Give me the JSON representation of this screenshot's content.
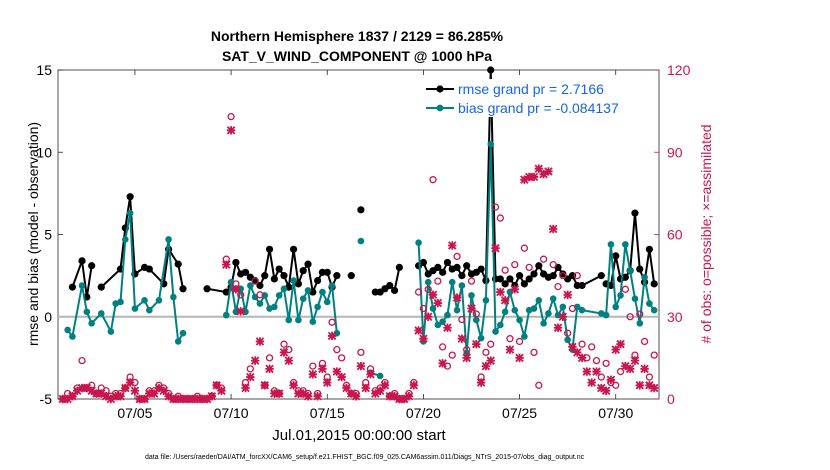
{
  "chart_data": {
    "type": "line",
    "title_line1": "Northern Hemisphere 1837 / 2129 = 86.285%",
    "title_line2": "SAT_V_WIND_COMPONENT @ 1000 hPa",
    "xlabel": "Jul.01,2015 00:00:00 start",
    "ylabel": "rmse and bias (model - observation)",
    "y2label": "# of obs: o=possible; ×=assimilated",
    "footnote": "data file: /Users/raeder/DAI/ATM_forcXX/CAM6_setup/f.e21.FHIST_BGC.f09_025.CAM6assim.011/Diags_NTrS_2015-07/obs_diag_output.nc",
    "xlim": [
      1.0,
      32.25
    ],
    "ylim": [
      -5,
      15
    ],
    "y2lim": [
      0,
      120
    ],
    "x_ticks": [
      {
        "value": 5,
        "label": "07/05"
      },
      {
        "value": 10,
        "label": "07/10"
      },
      {
        "value": 15,
        "label": "07/15"
      },
      {
        "value": 20,
        "label": "07/20"
      },
      {
        "value": 25,
        "label": "07/25"
      },
      {
        "value": 30,
        "label": "07/30"
      }
    ],
    "y_ticks": [
      {
        "value": -5,
        "label": "-5"
      },
      {
        "value": 0,
        "label": "0"
      },
      {
        "value": 5,
        "label": "5"
      },
      {
        "value": 10,
        "label": "10"
      },
      {
        "value": 15,
        "label": "15"
      }
    ],
    "y2_ticks": [
      {
        "value": 0,
        "label": "0"
      },
      {
        "value": 30,
        "label": "30"
      },
      {
        "value": 60,
        "label": "60"
      },
      {
        "value": 90,
        "label": "90"
      },
      {
        "value": 120,
        "label": "120"
      }
    ],
    "legend": [
      {
        "label": "rmse grand pr = 2.7166",
        "color": "#000000",
        "marker": "hexagram"
      },
      {
        "label": "bias grand pr = -0.084137",
        "color": "#008080",
        "marker": "dot"
      }
    ],
    "series": [
      {
        "name": "rmse",
        "color": "#000000",
        "x": [
          1.75,
          2.25,
          2.5,
          2.75,
          3.25,
          4.25,
          4.5,
          4.75,
          5.0,
          5.5,
          5.75,
          6.5,
          6.75,
          7.25,
          7.5,
          8.75,
          9.75,
          10.0,
          10.25,
          10.5,
          10.75,
          11.0,
          11.25,
          11.5,
          11.75,
          12.0,
          12.25,
          12.5,
          12.75,
          13.0,
          13.25,
          13.5,
          13.75,
          14.0,
          14.25,
          14.5,
          14.75,
          15.0,
          15.25,
          15.5,
          16.25,
          16.75,
          17.5,
          17.75,
          18.0,
          18.25,
          18.5,
          18.75,
          19.75,
          20.0,
          20.25,
          20.5,
          20.75,
          21.0,
          21.25,
          21.5,
          21.75,
          22.0,
          22.25,
          22.5,
          22.75,
          23.0,
          23.25,
          23.5,
          23.75,
          24.0,
          24.25,
          24.5,
          24.75,
          25.0,
          25.25,
          25.5,
          25.75,
          26.0,
          26.25,
          26.5,
          26.75,
          27.0,
          27.25,
          27.5,
          27.75,
          28.0,
          28.25,
          29.25,
          29.5,
          29.75,
          30.0,
          30.25,
          30.5,
          30.75,
          31.0,
          31.25,
          31.5,
          31.75,
          32.0
        ],
        "y": [
          1.8,
          3.4,
          1.2,
          3.1,
          1.8,
          2.9,
          5.4,
          7.3,
          2.6,
          3.0,
          2.9,
          2.0,
          4.1,
          3.2,
          1.7,
          1.7,
          1.5,
          1.8,
          3.3,
          2.6,
          2.7,
          2.4,
          2.2,
          1.9,
          2.5,
          4.1,
          2.3,
          2.9,
          2.5,
          1.8,
          4.1,
          2.0,
          2.8,
          3.2,
          1.5,
          2.2,
          2.7,
          2.7,
          1.8,
          2.5,
          2.5,
          6.5,
          1.5,
          1.5,
          1.7,
          1.9,
          1.6,
          3.0,
          3.1,
          3.3,
          2.6,
          2.8,
          3.0,
          2.7,
          3.3,
          2.9,
          3.0,
          2.5,
          3.1,
          2.6,
          2.7,
          2.9,
          2.2,
          15.0,
          2.3,
          2.3,
          2.0,
          2.3,
          1.9,
          2.5,
          2.0,
          2.3,
          2.6,
          3.1,
          2.6,
          2.4,
          2.5,
          3.0,
          2.6,
          2.3,
          2.5,
          1.9,
          1.9,
          2.5,
          2.0,
          1.9,
          3.7,
          2.3,
          2.4,
          2.8,
          6.3,
          2.9,
          2.1,
          4.1,
          2.0
        ],
        "segments": [
          [
            0,
            3
          ],
          [
            4,
            14
          ],
          [
            15,
            21
          ],
          [
            22,
            39
          ],
          [
            40,
            40
          ],
          [
            41,
            41
          ],
          [
            42,
            47
          ],
          [
            48,
            83
          ],
          [
            84,
            94
          ]
        ]
      },
      {
        "name": "bias",
        "color": "#008080",
        "x": [
          1.5,
          1.75,
          2.25,
          2.5,
          2.75,
          3.25,
          3.75,
          4.0,
          4.25,
          4.5,
          4.75,
          5.0,
          5.5,
          5.75,
          6.25,
          6.75,
          7.0,
          7.25,
          7.5,
          9.75,
          10.0,
          10.25,
          10.5,
          10.75,
          11.0,
          11.25,
          11.5,
          11.75,
          12.0,
          12.25,
          12.5,
          12.75,
          13.0,
          13.25,
          13.5,
          13.75,
          14.0,
          14.25,
          14.5,
          14.75,
          15.0,
          15.25,
          15.5,
          16.75,
          17.25,
          17.75,
          19.75,
          20.0,
          20.25,
          20.5,
          20.75,
          21.0,
          21.25,
          21.5,
          21.75,
          22.0,
          22.25,
          22.5,
          22.75,
          23.0,
          23.25,
          23.5,
          23.75,
          24.0,
          24.25,
          24.5,
          24.75,
          25.0,
          25.25,
          25.5,
          25.75,
          26.0,
          26.25,
          26.5,
          26.75,
          27.0,
          27.25,
          27.5,
          27.75,
          28.0,
          28.25,
          29.25,
          29.5,
          29.75,
          30.0,
          30.25,
          30.5,
          30.75,
          31.0,
          31.25,
          31.5,
          31.75,
          32.0
        ],
        "y": [
          -0.8,
          -1.2,
          1.9,
          0.3,
          -0.4,
          0.2,
          -0.9,
          0.8,
          0.9,
          4.7,
          6.3,
          0.5,
          1.0,
          0.4,
          1.0,
          4.7,
          1.2,
          -1.5,
          -1.0,
          0.1,
          2.1,
          0.3,
          1.7,
          0.3,
          1.9,
          1.2,
          0.8,
          1.3,
          0.5,
          0.6,
          1.3,
          1.7,
          -0.2,
          2.2,
          -0.2,
          1.1,
          1.6,
          -0.3,
          0.6,
          1.5,
          0.9,
          1.9,
          -1.0,
          4.6,
          -3.4,
          -3.6,
          4.5,
          -1.5,
          2.1,
          0.5,
          -0.5,
          -0.3,
          0.1,
          2.1,
          0.4,
          1.9,
          -2.2,
          1.3,
          -0.2,
          -1.3,
          1.0,
          10.5,
          -0.9,
          -0.5,
          0.3,
          1.5,
          0.4,
          -0.2,
          -1.2,
          0.4,
          0.5,
          1.0,
          -0.4,
          0.2,
          1.1,
          0.1,
          0.6,
          -1.4,
          -2.0,
          0.6,
          0.4,
          0.2,
          0.1,
          4.4,
          0.6,
          1.3,
          4.4,
          2.8,
          1.1,
          -0.4,
          2.4,
          0.8,
          0.4
        ],
        "segments": [
          [
            0,
            18
          ],
          [
            19,
            42
          ],
          [
            43,
            43
          ],
          [
            44,
            45
          ],
          [
            46,
            92
          ]
        ]
      }
    ],
    "obs_possible": {
      "color": "#c8174e",
      "x": [
        1.25,
        1.5,
        1.75,
        2.0,
        2.25,
        2.5,
        2.75,
        3.0,
        3.25,
        3.5,
        3.75,
        4.0,
        4.25,
        4.5,
        4.75,
        5.0,
        5.25,
        5.5,
        5.75,
        6.0,
        6.25,
        6.5,
        6.75,
        7.0,
        7.25,
        7.5,
        7.75,
        8.0,
        8.25,
        8.5,
        8.75,
        9.0,
        9.25,
        9.5,
        9.75,
        10.0,
        10.25,
        10.5,
        10.75,
        11.0,
        11.25,
        11.5,
        11.75,
        12.0,
        12.25,
        12.5,
        12.75,
        13.0,
        13.25,
        13.5,
        13.75,
        14.0,
        14.25,
        14.5,
        14.75,
        15.0,
        15.25,
        15.5,
        15.75,
        16.0,
        16.25,
        16.5,
        16.75,
        17.0,
        17.25,
        17.5,
        17.75,
        18.0,
        18.25,
        18.5,
        18.75,
        19.0,
        19.25,
        19.5,
        19.75,
        20.0,
        20.25,
        20.5,
        20.75,
        21.0,
        21.25,
        21.5,
        21.75,
        22.0,
        22.25,
        22.5,
        22.75,
        23.0,
        23.25,
        23.5,
        23.75,
        24.0,
        24.25,
        24.5,
        24.75,
        25.0,
        25.25,
        25.5,
        25.75,
        26.0,
        26.25,
        26.5,
        26.75,
        27.0,
        27.25,
        27.5,
        27.75,
        28.0,
        28.25,
        28.5,
        28.75,
        29.0,
        29.25,
        29.5,
        29.75,
        30.0,
        30.25,
        30.5,
        30.75,
        31.0,
        31.25,
        31.5,
        31.75,
        32.0
      ],
      "y": [
        0,
        2,
        1,
        4,
        14,
        4,
        5,
        2,
        4,
        3,
        1,
        2,
        2,
        4,
        8,
        6,
        0,
        0,
        3,
        3,
        5,
        4,
        2,
        0,
        1,
        0,
        0,
        0,
        1,
        0,
        0,
        1,
        5,
        4,
        51,
        103,
        42,
        38,
        6,
        11,
        43,
        38,
        5,
        15,
        3,
        2,
        20,
        18,
        6,
        3,
        3,
        2,
        12,
        2,
        13,
        8,
        28,
        18,
        15,
        5,
        2,
        2,
        17,
        6,
        11,
        3,
        4,
        6,
        1,
        2,
        0,
        0,
        2,
        6,
        39,
        33,
        40,
        80,
        43,
        19,
        12,
        16,
        52,
        29,
        18,
        43,
        31,
        8,
        17,
        20,
        70,
        66,
        47,
        22,
        49,
        21,
        55,
        48,
        17,
        5,
        51,
        110,
        49,
        41,
        45,
        24,
        33,
        45,
        20,
        15,
        19,
        14,
        8,
        13,
        6,
        5,
        10,
        40,
        30,
        16,
        31,
        21,
        8,
        16
      ]
    },
    "obs_assimilated": {
      "color": "#c8174e",
      "x": [
        1.25,
        1.5,
        1.75,
        2.0,
        2.25,
        2.5,
        2.75,
        3.0,
        3.25,
        3.5,
        3.75,
        4.0,
        4.25,
        4.5,
        4.75,
        5.0,
        5.25,
        5.5,
        5.75,
        6.0,
        6.25,
        6.5,
        6.75,
        7.0,
        7.25,
        7.5,
        7.75,
        8.0,
        8.25,
        8.5,
        8.75,
        9.0,
        9.25,
        9.5,
        9.75,
        10.0,
        10.25,
        10.5,
        10.75,
        11.0,
        11.25,
        11.5,
        11.75,
        12.0,
        12.25,
        12.5,
        12.75,
        13.0,
        13.25,
        13.5,
        13.75,
        14.0,
        14.25,
        14.5,
        14.75,
        15.0,
        15.25,
        15.5,
        15.75,
        16.0,
        16.25,
        16.5,
        16.75,
        17.0,
        17.25,
        17.5,
        17.75,
        18.0,
        18.25,
        18.5,
        18.75,
        19.0,
        19.25,
        19.5,
        19.75,
        20.0,
        20.25,
        20.5,
        20.75,
        21.0,
        21.25,
        21.5,
        21.75,
        22.0,
        22.25,
        22.5,
        22.75,
        23.0,
        23.25,
        23.5,
        23.75,
        24.0,
        24.25,
        24.5,
        24.75,
        25.0,
        25.25,
        25.5,
        25.75,
        26.0,
        26.25,
        26.5,
        26.75,
        27.0,
        27.25,
        27.5,
        27.75,
        28.0,
        28.25,
        28.5,
        28.75,
        29.0,
        29.25,
        29.5,
        29.75,
        30.0,
        30.25,
        30.5,
        30.75,
        31.0,
        31.25,
        31.5,
        31.75,
        32.0
      ],
      "y": [
        0,
        0,
        1,
        3,
        4,
        4,
        3,
        2,
        2,
        1,
        0,
        1,
        1,
        4,
        6,
        3,
        0,
        0,
        2,
        2,
        4,
        3,
        1,
        0,
        0,
        0,
        0,
        0,
        0,
        0,
        0,
        1,
        5,
        3,
        49,
        98,
        40,
        32,
        4,
        8,
        14,
        21,
        5,
        11,
        2,
        2,
        17,
        14,
        5,
        2,
        2,
        1,
        9,
        1,
        11,
        6,
        23,
        10,
        8,
        4,
        2,
        1,
        12,
        4,
        9,
        2,
        3,
        5,
        1,
        1,
        0,
        0,
        1,
        5,
        25,
        22,
        30,
        38,
        35,
        13,
        26,
        56,
        37,
        22,
        15,
        33,
        20,
        6,
        12,
        14,
        55,
        39,
        36,
        18,
        40,
        15,
        80,
        81,
        81,
        84,
        82,
        83,
        62,
        26,
        30,
        38,
        19,
        17,
        15,
        10,
        6,
        10,
        4,
        3,
        7,
        18,
        20,
        12,
        11,
        14,
        5,
        11,
        5,
        4
      ]
    }
  }
}
